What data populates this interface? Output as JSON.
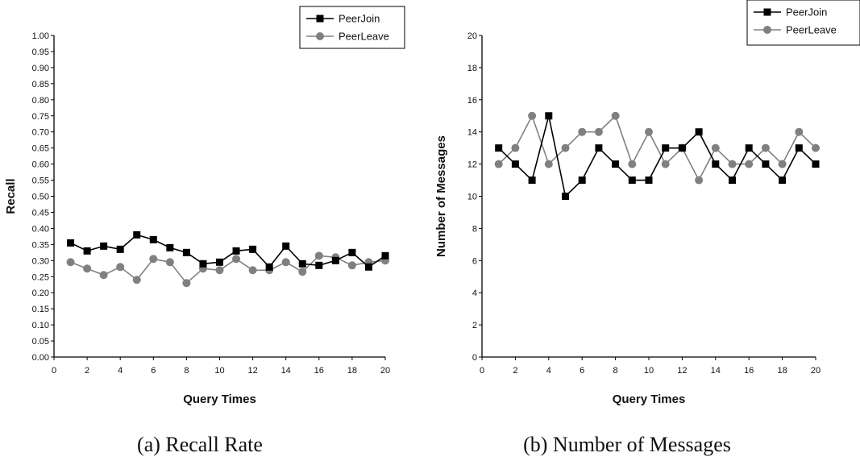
{
  "chart_data": [
    {
      "type": "line",
      "caption": "(a) Recall Rate",
      "xlabel": "Query Times",
      "ylabel": "Recall",
      "xlim": [
        0,
        20
      ],
      "ylim": [
        0,
        1
      ],
      "xticks": [
        "0",
        "2",
        "4",
        "6",
        "8",
        "10",
        "12",
        "14",
        "16",
        "18",
        "20"
      ],
      "yticks": [
        "0.00",
        "0.05",
        "0.10",
        "0.15",
        "0.20",
        "0.25",
        "0.30",
        "0.35",
        "0.40",
        "0.45",
        "0.50",
        "0.55",
        "0.60",
        "0.65",
        "0.70",
        "0.75",
        "0.80",
        "0.85",
        "0.90",
        "0.95",
        "1.00"
      ],
      "legend_position": "top-right",
      "grid": false,
      "x": [
        1,
        2,
        3,
        4,
        5,
        6,
        7,
        8,
        9,
        10,
        11,
        12,
        13,
        14,
        15,
        16,
        17,
        18,
        19,
        20
      ],
      "series": [
        {
          "name": "PeerJoin",
          "color": "#000000",
          "marker": "square",
          "values": [
            0.355,
            0.33,
            0.345,
            0.335,
            0.38,
            0.365,
            0.34,
            0.325,
            0.29,
            0.295,
            0.33,
            0.335,
            0.28,
            0.345,
            0.29,
            0.285,
            0.3,
            0.325,
            0.28,
            0.315
          ]
        },
        {
          "name": "PeerLeave",
          "color": "#808080",
          "marker": "circle",
          "values": [
            0.295,
            0.275,
            0.255,
            0.28,
            0.24,
            0.305,
            0.295,
            0.23,
            0.275,
            0.27,
            0.305,
            0.27,
            0.27,
            0.295,
            0.265,
            0.315,
            0.31,
            0.285,
            0.295,
            0.3
          ]
        }
      ]
    },
    {
      "type": "line",
      "caption": "(b) Number of Messages",
      "xlabel": "Query Times",
      "ylabel": "Number of Messages",
      "xlim": [
        0,
        20
      ],
      "ylim": [
        0,
        20
      ],
      "xticks": [
        "0",
        "2",
        "4",
        "6",
        "8",
        "10",
        "12",
        "14",
        "16",
        "18",
        "20"
      ],
      "yticks": [
        "0",
        "2",
        "4",
        "6",
        "8",
        "10",
        "12",
        "14",
        "16",
        "18",
        "20"
      ],
      "legend_position": "top-right",
      "grid": false,
      "x": [
        1,
        2,
        3,
        4,
        5,
        6,
        7,
        8,
        9,
        10,
        11,
        12,
        13,
        14,
        15,
        16,
        17,
        18,
        19,
        20
      ],
      "series": [
        {
          "name": "PeerJoin",
          "color": "#000000",
          "marker": "square",
          "values": [
            13,
            12,
            11,
            15,
            10,
            11,
            13,
            12,
            11,
            11,
            13,
            13,
            14,
            12,
            11,
            13,
            12,
            11,
            13,
            12
          ]
        },
        {
          "name": "PeerLeave",
          "color": "#808080",
          "marker": "circle",
          "values": [
            12,
            13,
            15,
            12,
            13,
            14,
            14,
            15,
            12,
            14,
            12,
            13,
            11,
            13,
            12,
            12,
            13,
            12,
            14,
            13
          ]
        }
      ]
    }
  ]
}
